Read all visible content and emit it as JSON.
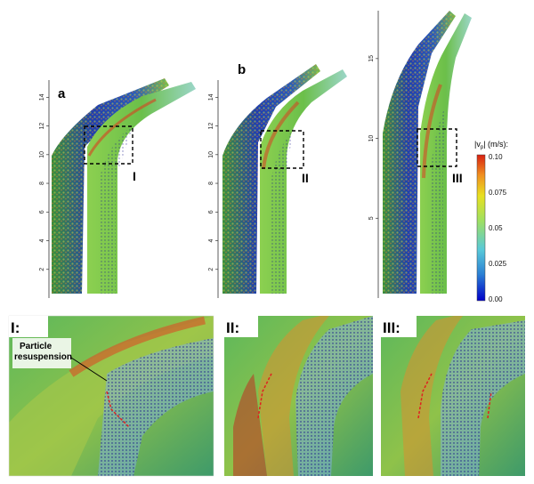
{
  "panels": {
    "a": {
      "letter": "a",
      "box_label": "I",
      "yticks": [
        "2",
        "4",
        "6",
        "8",
        "10",
        "12",
        "14"
      ]
    },
    "b": {
      "letter": "b",
      "box_label": "II",
      "yticks": [
        "2",
        "4",
        "6",
        "8",
        "10",
        "12",
        "14"
      ]
    },
    "c": {
      "box_label": "III",
      "yticks": [
        "5",
        "10",
        "15"
      ]
    }
  },
  "colorbar": {
    "title": "|v",
    "title_sub": "p",
    "title_unit": "| (m/s):",
    "ticks": [
      "0.10",
      "0.075",
      "0.05",
      "0.025",
      "0.00"
    ],
    "colors": [
      "#0000c8",
      "#2a7fd4",
      "#58c9d9",
      "#9fe060",
      "#e8e020",
      "#f09020",
      "#d82010"
    ]
  },
  "zoom_panels": [
    {
      "label": "I:",
      "annotation": "Particle\nresuspension"
    },
    {
      "label": "II:"
    },
    {
      "label": "III:"
    }
  ]
}
